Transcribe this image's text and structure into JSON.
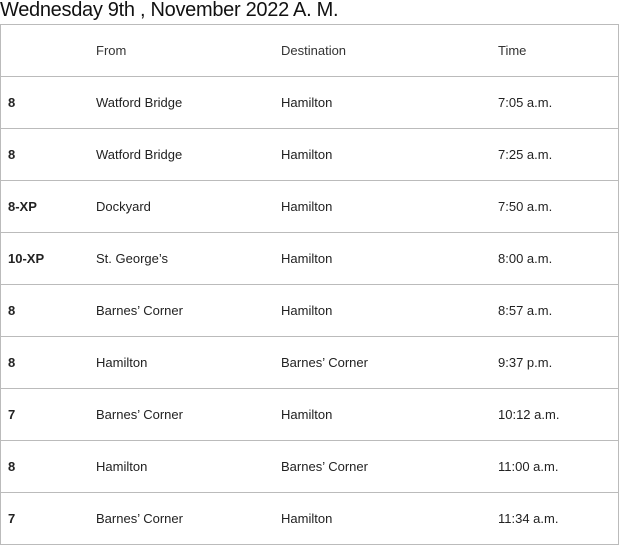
{
  "title": "Wednesday 9th , November 2022 A. M.",
  "columns": [
    "",
    "From",
    "Destination",
    "Time"
  ],
  "rows": [
    [
      "8",
      "Watford Bridge",
      "Hamilton",
      "7:05 a.m."
    ],
    [
      "8",
      "Watford Bridge",
      "Hamilton",
      "7:25 a.m."
    ],
    [
      "8-XP",
      "Dockyard",
      "Hamilton",
      "7:50 a.m."
    ],
    [
      "10-XP",
      "St. George’s",
      "Hamilton",
      "8:00 a.m."
    ],
    [
      "8",
      "Barnes’ Corner",
      "Hamilton",
      "8:57 a.m."
    ],
    [
      "8",
      "Hamilton",
      "Barnes’ Corner",
      "9:37 p.m."
    ],
    [
      "7",
      "Barnes’ Corner",
      "Hamilton",
      "10:12 a.m."
    ],
    [
      "8",
      "Hamilton",
      "Barnes’ Corner",
      "11:00 a.m."
    ],
    [
      "7",
      "Barnes’ Corner",
      "Hamilton",
      "11:34 a.m."
    ]
  ]
}
